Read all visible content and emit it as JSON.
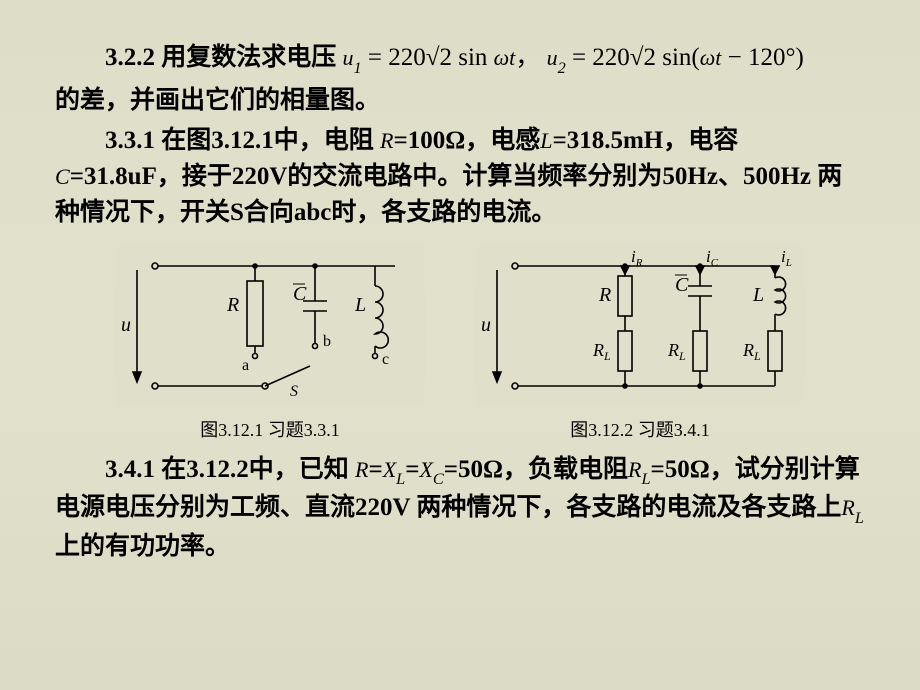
{
  "p322": {
    "num": "3.2.2",
    "pre": "用复数法求电压",
    "eq1_html": "<span class='math'>u</span><span class='math sub'>1</span> <span class='mathn'>= 220√2 sin</span> <span class='math'>ωt</span><span class='mathn'>，</span>",
    "eq2_html": "<span class='math'>u</span><span class='math sub'>2</span> <span class='mathn'>= 220√2 sin(</span><span class='math'>ωt</span> <span class='mathn'>− 120°)</span>",
    "tail": "的差，并画出它们的相量图。"
  },
  "p331": {
    "num": "3.3.1",
    "text_html": "在图3.12.1中，电阻 <span class='math'>R</span>=100Ω，电感<span class='math'>L</span>=318.5mH，电容<span class='math'>C</span>=31.8uF，接于220V的交流电路中。计算当频率分别为50Hz、500Hz 两种情况下，开关S合向abc时，各支路的电流。"
  },
  "p341": {
    "num": "3.4.1",
    "text_html": "在3.12.2中，已知 <span class='math'>R</span>=<span class='math'>X</span><span class='math sub'>L</span>=<span class='math'>X</span><span class='math sub'>C</span>=50Ω，负载电阻<span class='math'>R</span><span class='math sub'>L</span>=50Ω，试分别计算电源电压分别为工频、直流220V 两种情况下，各支路的电流及各支路上<span class='math'>R</span><span class='math sub'>L</span>上的有功功率。"
  },
  "fig1": {
    "caption": "图3.12.1  习题3.3.1",
    "labels": {
      "u": "u",
      "R": "R",
      "C": "C",
      "L": "L",
      "a": "a",
      "b": "b",
      "c": "c",
      "S": "S"
    }
  },
  "fig2": {
    "caption": "图3.12.2  习题3.4.1",
    "labels": {
      "u": "u",
      "R": "R",
      "C": "C",
      "L": "L",
      "RL": "R",
      "RLs": "L",
      "iR": "i",
      "iRs": "R",
      "iC": "i",
      "iCs": "C",
      "iL": "i",
      "iLs": "L"
    }
  },
  "style": {
    "stroke": "#000000",
    "stroke_width": 1.6,
    "font": "italic 18px Times New Roman",
    "font_small": "italic 13px Times New Roman"
  }
}
